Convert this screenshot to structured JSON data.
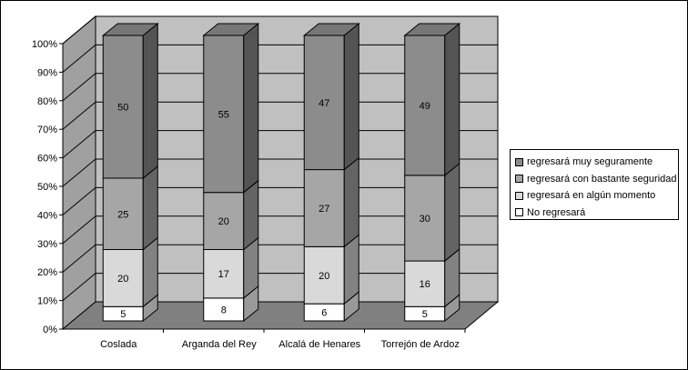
{
  "chart_data": {
    "type": "bar",
    "stacked": true,
    "percent_stacked": true,
    "three_d": true,
    "title": "",
    "xlabel": "",
    "ylabel": "",
    "ylim": [
      0,
      100
    ],
    "y_ticks": [
      "0%",
      "10%",
      "20%",
      "30%",
      "40%",
      "50%",
      "60%",
      "70%",
      "80%",
      "90%",
      "100%"
    ],
    "grid": true,
    "legend_position": "right",
    "categories": [
      "Coslada",
      "Arganda del Rey",
      "Alcalá de Henares",
      "Torrejón de Ardoz"
    ],
    "series": [
      {
        "name": "No regresará",
        "values": [
          5,
          8,
          6,
          5
        ],
        "color": "#ffffff"
      },
      {
        "name": "regresará en algún momento",
        "values": [
          20,
          17,
          20,
          16
        ],
        "color": "#d9d9d9"
      },
      {
        "name": "regresará con bastante seguridad",
        "values": [
          25,
          20,
          27,
          30
        ],
        "color": "#a6a6a6"
      },
      {
        "name": "regresará muy seguramente",
        "values": [
          50,
          55,
          47,
          49
        ],
        "color": "#8c8c8c"
      }
    ],
    "colors": {
      "wall": "#c0c0c0",
      "floor": "#808080",
      "side_wall": "#a0a0a0"
    }
  }
}
